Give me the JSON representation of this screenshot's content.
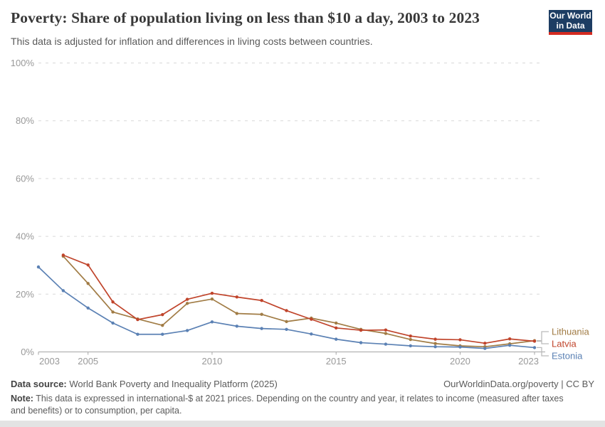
{
  "header": {
    "title": "Poverty: Share of population living on less than $10 a day, 2003 to 2023",
    "subtitle": "This data is adjusted for inflation and differences in living costs between countries.",
    "logo_line1": "Our World",
    "logo_line2": "in Data"
  },
  "chart_data": {
    "type": "line",
    "title": "Poverty: Share of population living on less than $10 a day, 2003 to 2023",
    "xlabel": "",
    "ylabel": "",
    "ylim": [
      0,
      100
    ],
    "yticks": [
      0,
      20,
      40,
      60,
      80,
      100
    ],
    "ytick_suffix": "%",
    "xticks": [
      2003,
      2005,
      2010,
      2015,
      2020,
      2023
    ],
    "x": [
      2003,
      2004,
      2005,
      2006,
      2007,
      2008,
      2009,
      2010,
      2011,
      2012,
      2013,
      2014,
      2015,
      2016,
      2017,
      2018,
      2019,
      2020,
      2021,
      2022,
      2023
    ],
    "grid": "dashed-horizontal",
    "legend_position": "right",
    "series": [
      {
        "name": "Lithuania",
        "color": "#a17c45",
        "values": [
          null,
          33.1,
          23.7,
          13.8,
          11.4,
          9.2,
          16.8,
          18.3,
          13.3,
          13.0,
          10.5,
          11.7,
          10.0,
          7.8,
          6.4,
          4.3,
          2.9,
          2.1,
          1.8,
          2.8,
          3.9
        ]
      },
      {
        "name": "Latvia",
        "color": "#c0442b",
        "values": [
          null,
          33.5,
          30.1,
          17.3,
          11.2,
          12.9,
          18.2,
          20.3,
          19.0,
          17.8,
          14.3,
          11.3,
          8.3,
          7.5,
          7.6,
          5.5,
          4.4,
          4.2,
          3.0,
          4.5,
          3.7
        ]
      },
      {
        "name": "Estonia",
        "color": "#5b81b4",
        "values": [
          29.4,
          21.2,
          15.2,
          10.0,
          6.1,
          6.1,
          7.4,
          10.4,
          8.9,
          8.1,
          7.8,
          6.2,
          4.4,
          3.2,
          2.7,
          2.1,
          1.8,
          1.7,
          1.2,
          2.3,
          1.5
        ]
      }
    ]
  },
  "footer": {
    "datasource_label": "Data source:",
    "datasource_text": " World Bank Poverty and Inequality Platform (2025)",
    "credit": "OurWorldinData.org/poverty | CC BY",
    "note_label": "Note:",
    "note_text": " This data is expressed in international-$ at 2021 prices. Depending on the country and year, it relates to income (measured after taxes and benefits) or to consumption, per capita."
  },
  "colors": {
    "grid": "#d9d9d9",
    "axis": "#a6a6a6",
    "tick_label": "#999999",
    "legend_bracket": "#bbbbbb",
    "logo_bg": "#1d3d63",
    "logo_stripe": "#d42b21"
  }
}
